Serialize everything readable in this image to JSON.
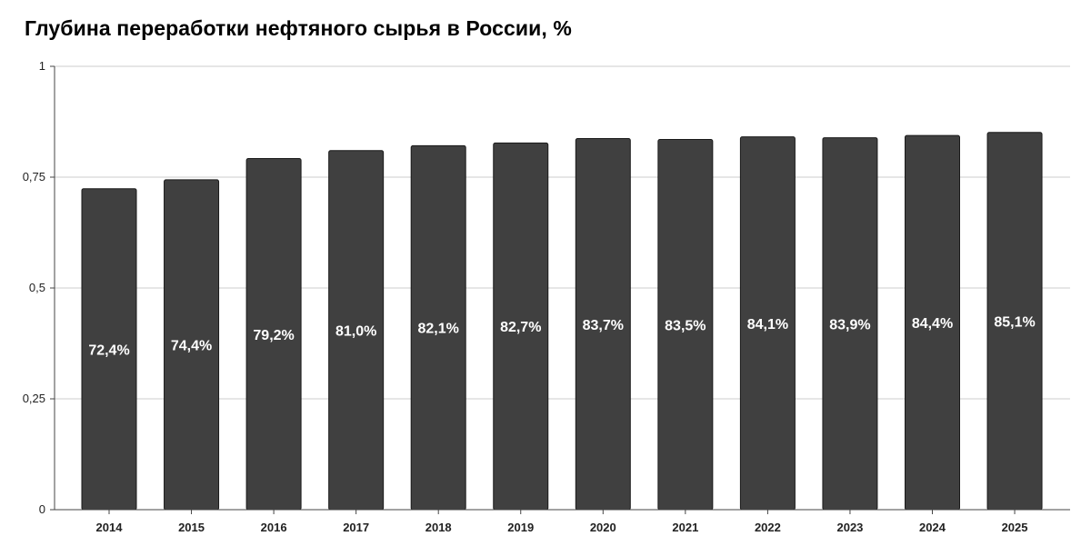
{
  "chart_data": {
    "type": "bar",
    "title": "Глубина переработки нефтяного сырья в России, %",
    "xlabel": "",
    "ylabel": "",
    "categories": [
      "2014",
      "2015",
      "2016",
      "2017",
      "2018",
      "2019",
      "2020",
      "2021",
      "2022",
      "2023",
      "2024",
      "2025"
    ],
    "values": [
      0.724,
      0.744,
      0.792,
      0.81,
      0.821,
      0.827,
      0.837,
      0.835,
      0.841,
      0.839,
      0.844,
      0.851
    ],
    "data_labels": [
      "72,4%",
      "74,4%",
      "79,2%",
      "81,0%",
      "82,1%",
      "82,7%",
      "83,7%",
      "83,5%",
      "84,1%",
      "83,9%",
      "84,4%",
      "85,1%"
    ],
    "yticks": [
      0,
      0.25,
      0.5,
      0.75,
      1
    ],
    "ytick_labels": [
      "0",
      "0,25",
      "0,5",
      "0,75",
      "1"
    ],
    "ylim": [
      0,
      1
    ],
    "grid": true,
    "legend": "none",
    "colors": {
      "bar": "#404040",
      "bar_outline": "#1a1a1a",
      "data_label": "#ffffff",
      "grid": "#cccccc",
      "axis": "#444444"
    }
  }
}
